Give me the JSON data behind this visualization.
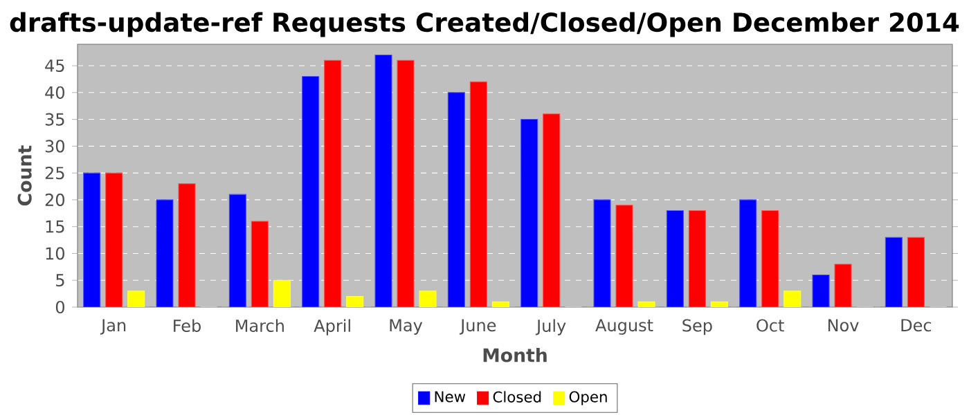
{
  "chart_data": {
    "type": "bar",
    "title": "drafts-update-ref Requests Created/Closed/Open December 2014",
    "xlabel": "Month",
    "ylabel": "Count",
    "categories": [
      "Jan",
      "Feb",
      "March",
      "April",
      "May",
      "June",
      "July",
      "August",
      "Sep",
      "Oct",
      "Nov",
      "Dec"
    ],
    "series": [
      {
        "name": "New",
        "color": "#0000ff",
        "values": [
          25,
          20,
          21,
          43,
          47,
          40,
          35,
          20,
          18,
          20,
          6,
          13
        ]
      },
      {
        "name": "Closed",
        "color": "#ff0000",
        "values": [
          25,
          23,
          16,
          46,
          46,
          42,
          36,
          19,
          18,
          18,
          8,
          13
        ]
      },
      {
        "name": "Open",
        "color": "#ffff00",
        "values": [
          3,
          0,
          5,
          2,
          3,
          1,
          0,
          1,
          1,
          3,
          0,
          0
        ]
      }
    ],
    "ylim": [
      0,
      49
    ],
    "yticks": [
      0,
      5,
      10,
      15,
      20,
      25,
      30,
      35,
      40,
      45
    ],
    "grid": "y",
    "legend": "bottom"
  }
}
